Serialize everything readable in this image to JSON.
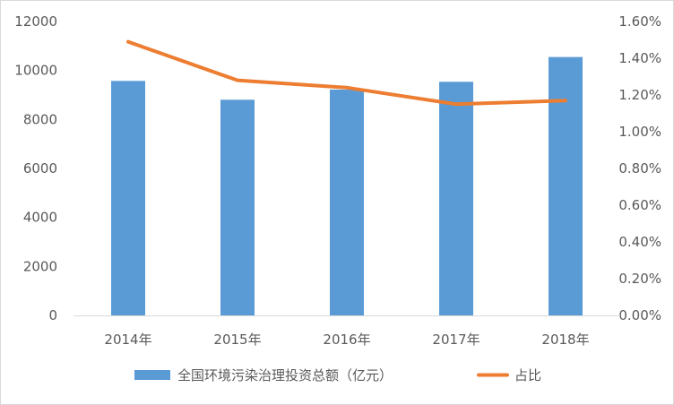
{
  "chart_data": {
    "type": "bar",
    "categories": [
      "2014年",
      "2015年",
      "2016年",
      "2017年",
      "2018年"
    ],
    "series": [
      {
        "name": "全国环境污染治理投资总额（亿元）",
        "type": "bar",
        "axis": "left",
        "color": "#5b9bd5",
        "values": [
          9575,
          8806,
          9220,
          9539,
          10550
        ]
      },
      {
        "name": "占比",
        "type": "line",
        "axis": "right",
        "color": "#ed7d31",
        "values": [
          1.49,
          1.28,
          1.24,
          1.15,
          1.17
        ]
      }
    ],
    "y_left": {
      "ylim": [
        0,
        12000
      ],
      "ticks": [
        "0",
        "2000",
        "4000",
        "6000",
        "8000",
        "10000",
        "12000"
      ]
    },
    "y_right": {
      "ylim": [
        0,
        1.6
      ],
      "ticks": [
        "0.00%",
        "0.20%",
        "0.40%",
        "0.60%",
        "0.80%",
        "1.00%",
        "1.20%",
        "1.40%",
        "1.60%"
      ]
    },
    "grid": false,
    "legend": "bottom"
  }
}
